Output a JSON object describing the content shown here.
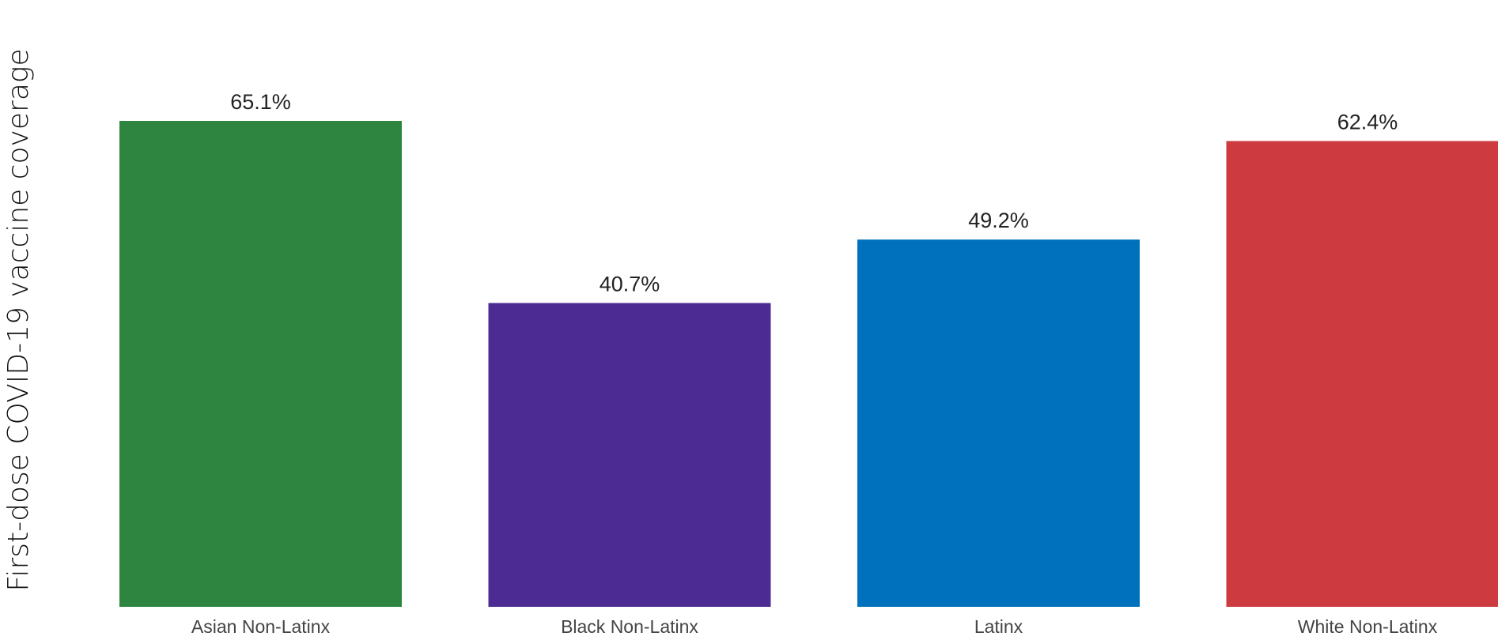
{
  "chart_data": {
    "type": "bar",
    "title": "",
    "xlabel": "",
    "ylabel": "First-dose COVID-19 vaccine coverage",
    "categories": [
      "Asian Non-Latinx",
      "Black Non-Latinx",
      "Latinx",
      "White Non-Latinx"
    ],
    "values": [
      65.1,
      40.7,
      49.2,
      62.4
    ],
    "data_labels": [
      "65.1%",
      "40.7%",
      "49.2%",
      "62.4%"
    ],
    "colors": [
      "#2e8540",
      "#4c2c92",
      "#0071bc",
      "#cd3a3f"
    ],
    "ylim": [
      0,
      65.1
    ],
    "grid": false,
    "legend": "none"
  }
}
